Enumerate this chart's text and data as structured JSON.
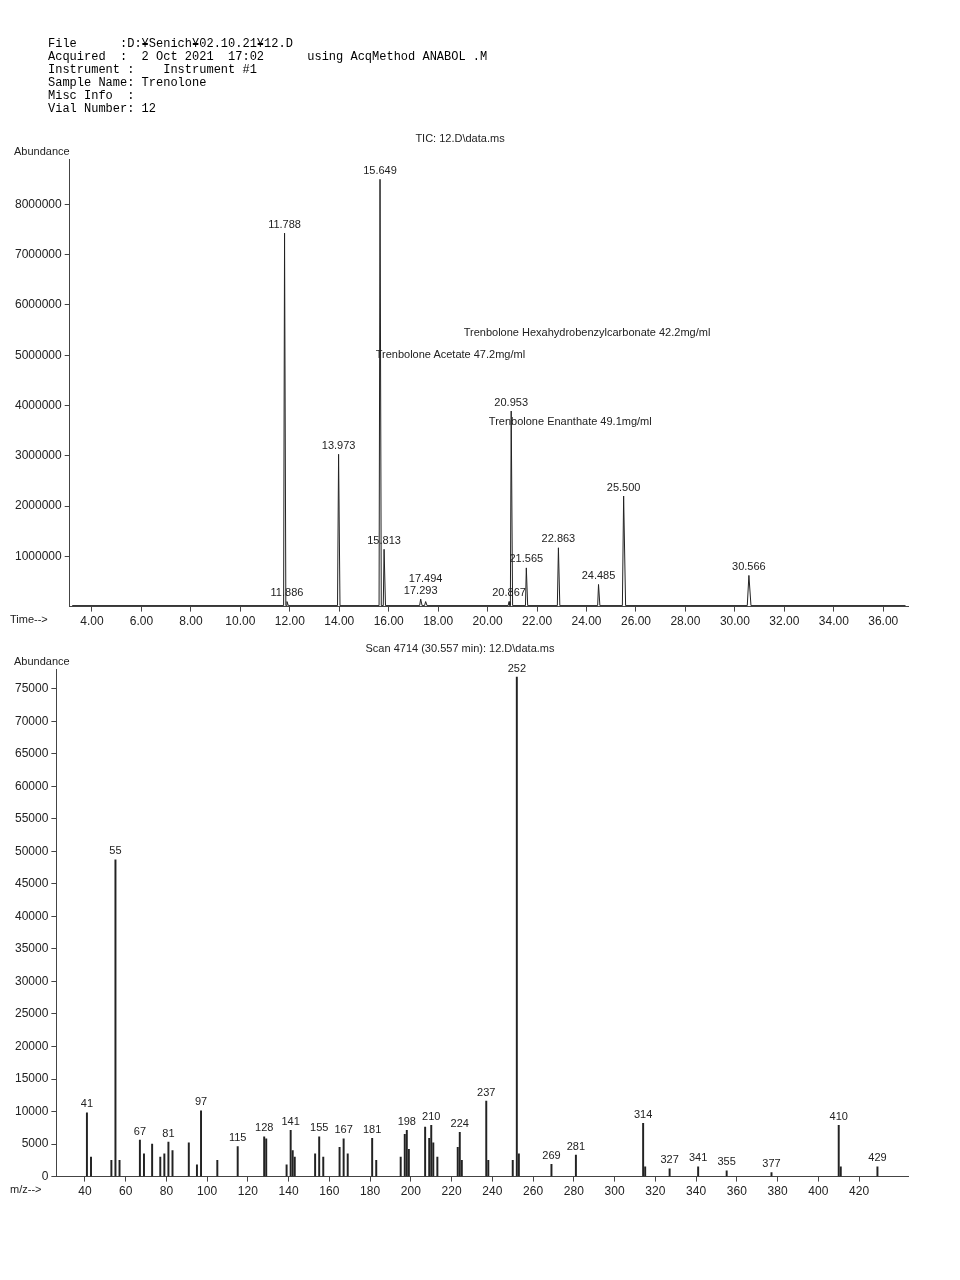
{
  "chart_data": [
    {
      "type": "line",
      "title": "TIC: 12.D\\data.ms",
      "subtitle": "File      :D:¥Senich¥02.10.21¥12.D\nAcquired  :  2 Oct 2021  17:02      using AcqMethod ANABOL .M\nInstrument :    Instrument #1\nSample Name: Trenolone\nMisc Info  :\nVial Number: 12",
      "xlabel": "Time-->",
      "ylabel": "Abundance",
      "marker": "none",
      "grid": false,
      "legend": false,
      "annotations": [
        "Trenbolone Hexahydrobenzylcarbonate 42.2mg/ml",
        "Trenbolone Acetate 47.2mg/ml",
        "Trenbolone Enanthate 49.1mg/ml",
        {
          "text": "11.788",
          "x": 11.788,
          "y": 7430000
        },
        {
          "text": "11.886",
          "x": 11.886,
          "y": 100000
        },
        {
          "text": "13.973",
          "x": 13.973,
          "y": 3030000
        },
        {
          "text": "15.649",
          "x": 15.649,
          "y": 8500000
        },
        {
          "text": "15.813",
          "x": 15.813,
          "y": 1140000
        },
        {
          "text": "17.293",
          "x": 17.293,
          "y": 150000
        },
        {
          "text": "17.494",
          "x": 17.494,
          "y": 100000
        },
        {
          "text": "20.867",
          "x": 20.867,
          "y": 100000
        },
        {
          "text": "20.953",
          "x": 20.953,
          "y": 3890000
        },
        {
          "text": "21.565",
          "x": 21.565,
          "y": 770000
        },
        {
          "text": "22.863",
          "x": 22.863,
          "y": 1170000
        },
        {
          "text": "24.485",
          "x": 24.485,
          "y": 440000
        },
        {
          "text": "25.500",
          "x": 25.5,
          "y": 2200000
        },
        {
          "text": "30.566",
          "x": 30.566,
          "y": 620000
        }
      ],
      "xlim": [
        3.1,
        37
      ],
      "ylim": [
        0,
        8900000
      ],
      "xticks": [
        {
          "value": 4,
          "label": "4.00"
        },
        {
          "value": 6,
          "label": "6.00"
        },
        {
          "value": 8,
          "label": "8.00"
        },
        {
          "value": 10,
          "label": "10.00"
        },
        {
          "value": 12,
          "label": "12.00"
        },
        {
          "value": 14,
          "label": "14.00"
        },
        {
          "value": 16,
          "label": "16.00"
        },
        {
          "value": 18,
          "label": "18.00"
        },
        {
          "value": 20,
          "label": "20.00"
        },
        {
          "value": 22,
          "label": "22.00"
        },
        {
          "value": 24,
          "label": "24.00"
        },
        {
          "value": 26,
          "label": "26.00"
        },
        {
          "value": 28,
          "label": "28.00"
        },
        {
          "value": 30,
          "label": "30.00"
        },
        {
          "value": 32,
          "label": "32.00"
        },
        {
          "value": 34,
          "label": "34.00"
        },
        {
          "value": 36,
          "label": "36.00"
        }
      ],
      "yticks": [
        1000000,
        2000000,
        3000000,
        4000000,
        5000000,
        6000000,
        7000000,
        8000000
      ],
      "series": [
        {
          "color": "#222222",
          "x": [
            3.2,
            11.75,
            11.788,
            11.84,
            11.86,
            11.886,
            11.94,
            13.93,
            13.973,
            14.03,
            15.61,
            15.649,
            15.7,
            15.78,
            15.813,
            15.87,
            17.25,
            17.293,
            17.35,
            17.45,
            17.494,
            17.55,
            20.83,
            20.867,
            20.9,
            20.92,
            20.953,
            21.01,
            21.53,
            21.565,
            21.62,
            22.82,
            22.863,
            22.92,
            24.45,
            24.485,
            24.54,
            25.45,
            25.5,
            25.58,
            30.5,
            30.566,
            30.65,
            36.9
          ],
          "values": [
            20000,
            20000,
            7430000,
            20000,
            20000,
            100000,
            20000,
            20000,
            3030000,
            20000,
            20000,
            8500000,
            20000,
            20000,
            1140000,
            20000,
            20000,
            150000,
            20000,
            20000,
            100000,
            20000,
            20000,
            100000,
            20000,
            20000,
            3890000,
            20000,
            20000,
            770000,
            20000,
            20000,
            1170000,
            20000,
            20000,
            440000,
            20000,
            20000,
            2200000,
            20000,
            20000,
            620000,
            20000,
            20000
          ]
        }
      ]
    },
    {
      "type": "bar",
      "title": "Scan 4714 (30.557 min): 12.D\\data.ms",
      "xlabel": "m/z-->",
      "ylabel": "Abundance",
      "grid": false,
      "legend": false,
      "annotations": [
        {
          "text": "41",
          "x": 41,
          "y": 9800
        },
        {
          "text": "55",
          "x": 55,
          "y": 48700
        },
        {
          "text": "67",
          "x": 67,
          "y": 5600
        },
        {
          "text": "81",
          "x": 81,
          "y": 5300
        },
        {
          "text": "97",
          "x": 97,
          "y": 10100
        },
        {
          "text": "115",
          "x": 115,
          "y": 4600
        },
        {
          "text": "128",
          "x": 128,
          "y": 6100
        },
        {
          "text": "141",
          "x": 141,
          "y": 7100
        },
        {
          "text": "155",
          "x": 155,
          "y": 6100
        },
        {
          "text": "167",
          "x": 167,
          "y": 5800
        },
        {
          "text": "181",
          "x": 181,
          "y": 5900
        },
        {
          "text": "198",
          "x": 198,
          "y": 7100
        },
        {
          "text": "210",
          "x": 210,
          "y": 7900
        },
        {
          "text": "224",
          "x": 224,
          "y": 6800
        },
        {
          "text": "237",
          "x": 237,
          "y": 11600
        },
        {
          "text": "252",
          "x": 252,
          "y": 76800
        },
        {
          "text": "269",
          "x": 269,
          "y": 1900
        },
        {
          "text": "281",
          "x": 281,
          "y": 3300
        },
        {
          "text": "314",
          "x": 314,
          "y": 8200
        },
        {
          "text": "327",
          "x": 327,
          "y": 1200
        },
        {
          "text": "341",
          "x": 341,
          "y": 1500
        },
        {
          "text": "355",
          "x": 355,
          "y": 900
        },
        {
          "text": "377",
          "x": 377,
          "y": 600
        },
        {
          "text": "410",
          "x": 410,
          "y": 7900
        },
        {
          "text": "429",
          "x": 429,
          "y": 1500
        }
      ],
      "xlim": [
        26,
        444
      ],
      "ylim": [
        0,
        78000
      ],
      "xticks": [
        40,
        60,
        80,
        100,
        120,
        140,
        160,
        180,
        200,
        220,
        240,
        260,
        280,
        300,
        320,
        340,
        360,
        380,
        400,
        420
      ],
      "yticks": [
        0,
        5000,
        10000,
        15000,
        20000,
        25000,
        30000,
        35000,
        40000,
        45000,
        50000,
        55000,
        60000,
        65000,
        70000,
        75000
      ],
      "series": [
        {
          "color": "#222222",
          "x": [
            41,
            43,
            53,
            55,
            57,
            67,
            69,
            73,
            77,
            79,
            81,
            83,
            91,
            95,
            97,
            105,
            115,
            128,
            129,
            139,
            141,
            142,
            143,
            153,
            155,
            157,
            165,
            167,
            169,
            181,
            183,
            195,
            197,
            198,
            199,
            207,
            209,
            210,
            211,
            213,
            223,
            224,
            225,
            237,
            238,
            250,
            252,
            253,
            269,
            281,
            314,
            315,
            327,
            341,
            355,
            377,
            410,
            411,
            429
          ],
          "values": [
            9800,
            3000,
            2500,
            48700,
            2500,
            5600,
            3500,
            5000,
            3000,
            3500,
            5300,
            4000,
            5200,
            1800,
            10100,
            2500,
            4600,
            6100,
            5800,
            1800,
            7100,
            4000,
            3000,
            3500,
            6100,
            3000,
            4500,
            5800,
            3500,
            5900,
            2500,
            3000,
            6500,
            7100,
            4200,
            7600,
            5900,
            7900,
            5200,
            3000,
            4500,
            6800,
            2500,
            11600,
            2500,
            2500,
            76800,
            3500,
            1900,
            3300,
            8200,
            1500,
            1200,
            1500,
            900,
            600,
            7900,
            1500,
            1500
          ]
        }
      ]
    }
  ]
}
